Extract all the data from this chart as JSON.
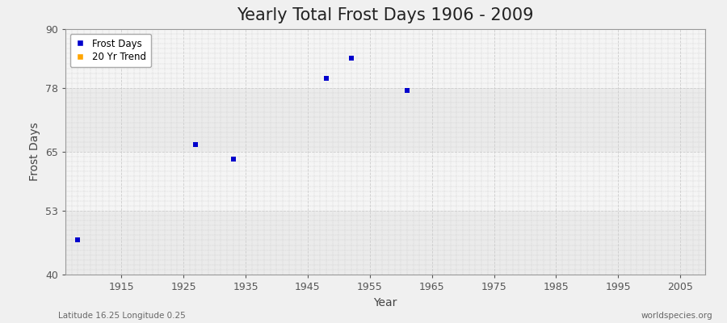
{
  "title": "Yearly Total Frost Days 1906 - 2009",
  "xlabel": "Year",
  "ylabel": "Frost Days",
  "subtitle_left": "Latitude 16.25 Longitude 0.25",
  "subtitle_right": "worldspecies.org",
  "xlim": [
    1906,
    2009
  ],
  "ylim": [
    40,
    90
  ],
  "yticks": [
    40,
    53,
    65,
    78,
    90
  ],
  "xticks": [
    1915,
    1925,
    1935,
    1945,
    1955,
    1965,
    1975,
    1985,
    1995,
    2005
  ],
  "data_x": [
    1908,
    1927,
    1933,
    1948,
    1952,
    1961
  ],
  "data_y": [
    47.0,
    66.5,
    63.5,
    80.0,
    84.0,
    77.5
  ],
  "marker_color": "#0000cc",
  "marker_size": 4,
  "legend_frost_label": "Frost Days",
  "legend_trend_label": "20 Yr Trend",
  "legend_frost_color": "#0000cc",
  "legend_trend_color": "#FFA500",
  "bg_color": "#f0f0f0",
  "plot_bg_color": "#f0f0f0",
  "grid_color": "#cccccc",
  "band_colors": [
    "#ebebeb",
    "#f5f5f5"
  ],
  "title_fontsize": 15,
  "axis_label_fontsize": 10,
  "tick_fontsize": 9
}
